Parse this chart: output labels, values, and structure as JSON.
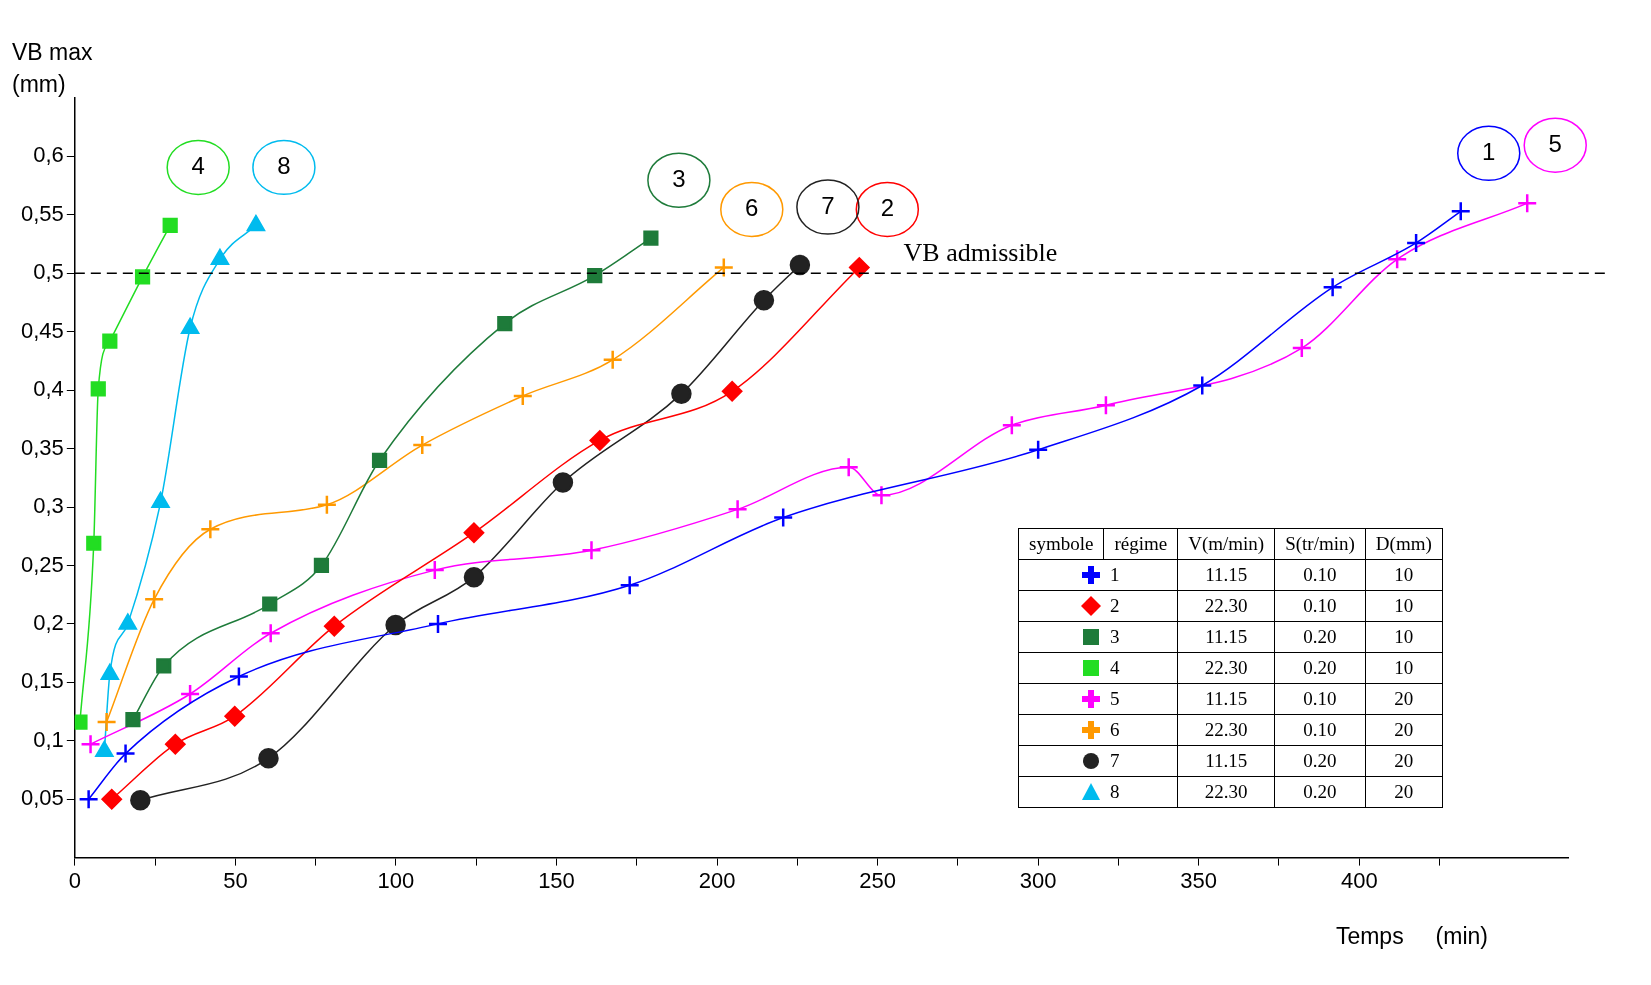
{
  "chart_data": {
    "type": "line",
    "xlabel": "Temps     (min)",
    "ylabel": "VB max\n(mm)",
    "xlim": [
      0,
      465
    ],
    "ylim": [
      0,
      0.65
    ],
    "xticks": [
      0,
      {
        "value": 25,
        "label": null
      },
      50,
      {
        "value": 75,
        "label": null
      },
      100,
      {
        "value": 125,
        "label": null
      },
      150,
      {
        "value": 175,
        "label": null
      },
      200,
      {
        "value": 225,
        "label": null
      },
      250,
      {
        "value": 275,
        "label": null
      },
      300,
      {
        "value": 325,
        "label": null
      },
      350,
      {
        "value": 375,
        "label": null
      },
      400,
      {
        "value": 425,
        "label": null
      }
    ],
    "yticks": [
      {
        "value": 0.05,
        "label": "0,05"
      },
      {
        "value": 0.1,
        "label": "0,1"
      },
      {
        "value": 0.15,
        "label": "0,15"
      },
      {
        "value": 0.2,
        "label": "0,2"
      },
      {
        "value": 0.25,
        "label": "0,25"
      },
      {
        "value": 0.3,
        "label": "0,3"
      },
      {
        "value": 0.35,
        "label": "0,35"
      },
      {
        "value": 0.4,
        "label": "0,4"
      },
      {
        "value": 0.45,
        "label": "0,45"
      },
      {
        "value": 0.5,
        "label": "0,5"
      },
      {
        "value": 0.55,
        "label": "0,55"
      },
      {
        "value": 0.6,
        "label": "0,6"
      }
    ],
    "grid": false,
    "legend": "bottom right",
    "ref_lines": [
      {
        "axis": "y",
        "value": 0.5,
        "label": "VB admissible",
        "color": "#000000",
        "line_style": "dashed"
      }
    ],
    "series": [
      {
        "name": "1",
        "color": "#0000ff",
        "marker": "cross",
        "x": [
          4.3,
          15.8,
          51.1,
          113.1,
          172.8,
          220.6,
          300,
          351.1,
          391.7,
          417.7,
          431.6
        ],
        "values": [
          0.05,
          0.089,
          0.155,
          0.2,
          0.233,
          0.291,
          0.349,
          0.404,
          0.488,
          0.526,
          0.553
        ]
      },
      {
        "name": "2",
        "color": "#ff0000",
        "marker": "diamond",
        "x": [
          11.5,
          31.3,
          49.8,
          80.8,
          124.3,
          163.5,
          204.7,
          244.3
        ],
        "values": [
          0.05,
          0.097,
          0.121,
          0.198,
          0.278,
          0.357,
          0.399,
          0.505
        ]
      },
      {
        "name": "3",
        "color": "#1e7b3a",
        "marker": "square",
        "x": [
          18.1,
          27.7,
          60.7,
          76.8,
          94.9,
          133.9,
          161.9,
          179.4
        ],
        "values": [
          0.118,
          0.164,
          0.217,
          0.25,
          0.34,
          0.457,
          0.498,
          0.53
        ]
      },
      {
        "name": "4",
        "color": "#22dd22",
        "marker": "square",
        "x": [
          1.6,
          5.9,
          7.3,
          10.9,
          21.1,
          29.7
        ],
        "values": [
          0.116,
          0.269,
          0.401,
          0.442,
          0.497,
          0.541
        ]
      },
      {
        "name": "5",
        "color": "#ff00ff",
        "marker": "cross",
        "x": [
          4.9,
          35.9,
          61,
          112.1,
          160.9,
          206.4,
          241,
          251.2,
          291.8,
          321.1,
          382.1,
          411.8,
          452.3
        ],
        "values": [
          0.097,
          0.14,
          0.192,
          0.246,
          0.263,
          0.298,
          0.334,
          0.31,
          0.37,
          0.387,
          0.436,
          0.512,
          0.56
        ]
      },
      {
        "name": "6",
        "color": "#ff9900",
        "marker": "cross",
        "x": [
          9.9,
          24.7,
          42.2,
          78.5,
          108.2,
          139.5,
          167.5,
          202.1
        ],
        "values": [
          0.116,
          0.221,
          0.281,
          0.302,
          0.353,
          0.395,
          0.426,
          0.505
        ]
      },
      {
        "name": "7",
        "color": "#222222",
        "marker": "circle",
        "x": [
          20.4,
          60.3,
          99.9,
          124.3,
          152,
          188.9,
          214.6,
          225.8
        ],
        "values": [
          0.049,
          0.085,
          0.199,
          0.24,
          0.321,
          0.397,
          0.477,
          0.507
        ]
      },
      {
        "name": "8",
        "color": "#00bbee",
        "marker": "triangle",
        "x": [
          9.2,
          10.9,
          16.5,
          26.7,
          35.9,
          45.2,
          56.4
        ],
        "values": [
          0.091,
          0.157,
          0.2,
          0.304,
          0.453,
          0.512,
          0.541
        ]
      }
    ],
    "annotations": [
      "symbole",
      "régime",
      "V(m/min)",
      "S(tr/min)",
      "D(mm)",
      "1",
      "11.15",
      "0.10",
      "10",
      "2",
      "22.30",
      "0.10",
      "10",
      "3",
      "11.15",
      "0.20",
      "10",
      "4",
      "22.30",
      "0.20",
      "10",
      "5",
      "11.15",
      "0.10",
      "20",
      "6",
      "22.30",
      "0.10",
      "20",
      "7",
      "11.15",
      "0.20",
      "20",
      "8",
      "22.30",
      "0.20",
      "20"
    ]
  }
}
